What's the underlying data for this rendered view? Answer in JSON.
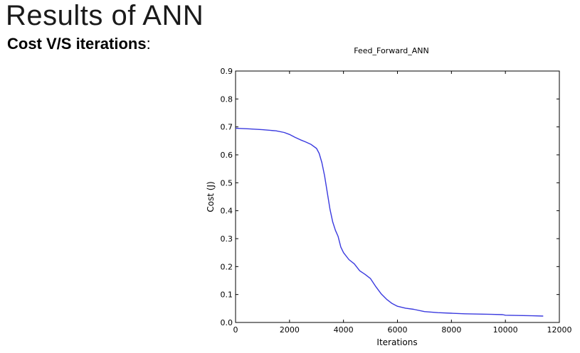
{
  "slide": {
    "title": "Results of ANN",
    "subtitle_bold": "Cost V/S iterations",
    "subtitle_suffix": ":"
  },
  "chart_data": {
    "type": "line",
    "title": "Feed_Forward_ANN",
    "xlabel": "Iterations",
    "ylabel": "Cost (J)",
    "xlim": [
      0,
      12000
    ],
    "ylim": [
      0,
      0.9
    ],
    "xticks": [
      0,
      2000,
      4000,
      6000,
      8000,
      10000,
      12000
    ],
    "yticks": [
      0.0,
      0.1,
      0.2,
      0.3,
      0.4,
      0.5,
      0.6,
      0.7,
      0.8,
      0.9
    ],
    "grid": false,
    "line_color": "#3a3adf",
    "series": [
      {
        "x": [
          0,
          500,
          1000,
          1500,
          1800,
          2000,
          2200,
          2400,
          2600,
          2800,
          3000,
          3100,
          3200,
          3300,
          3400,
          3500,
          3600,
          3700,
          3800,
          3900,
          4000,
          4200,
          4400,
          4600,
          4800,
          5000,
          5200,
          5400,
          5600,
          5800,
          6000,
          6300,
          6600,
          7000,
          7500,
          8000,
          8500,
          9000,
          9500,
          9900,
          10000,
          10500,
          11000,
          11400
        ],
        "y": [
          0.695,
          0.693,
          0.69,
          0.686,
          0.68,
          0.673,
          0.663,
          0.654,
          0.646,
          0.637,
          0.623,
          0.605,
          0.572,
          0.525,
          0.465,
          0.405,
          0.36,
          0.33,
          0.308,
          0.27,
          0.25,
          0.225,
          0.21,
          0.185,
          0.172,
          0.157,
          0.128,
          0.102,
          0.083,
          0.068,
          0.058,
          0.051,
          0.047,
          0.039,
          0.035,
          0.033,
          0.031,
          0.03,
          0.029,
          0.028,
          0.026,
          0.025,
          0.024,
          0.023
        ]
      }
    ]
  }
}
